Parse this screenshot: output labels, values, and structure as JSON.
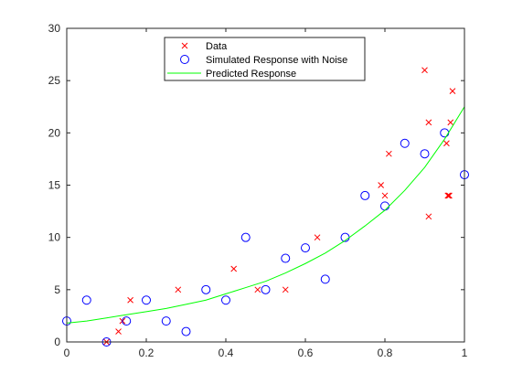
{
  "chart_data": {
    "type": "scatter",
    "title": "",
    "xlabel": "",
    "ylabel": "",
    "xlim": [
      0,
      1
    ],
    "ylim": [
      0,
      30
    ],
    "x_ticks": [
      0,
      0.2,
      0.4,
      0.6,
      0.8,
      1
    ],
    "x_tick_labels": [
      "0",
      "0.2",
      "0.4",
      "0.6",
      "0.8",
      "1"
    ],
    "y_ticks": [
      0,
      5,
      10,
      15,
      20,
      25,
      30
    ],
    "y_tick_labels": [
      "0",
      "5",
      "10",
      "15",
      "20",
      "25",
      "30"
    ],
    "grid": false,
    "legend_position": "top-center",
    "series": [
      {
        "name": "Data",
        "marker": "x",
        "color": "#ff0000",
        "x": [
          0.1,
          0.13,
          0.14,
          0.16,
          0.28,
          0.42,
          0.48,
          0.55,
          0.63,
          0.79,
          0.8,
          0.81,
          0.9,
          0.91,
          0.91,
          0.955,
          0.958,
          0.96,
          0.962,
          0.965,
          0.97
        ],
        "y": [
          0,
          1,
          2,
          4,
          5,
          7,
          5,
          5,
          10,
          15,
          14,
          18,
          26,
          12,
          21,
          19,
          14,
          14,
          14,
          21,
          24
        ]
      },
      {
        "name": "Simulated Response with Noise",
        "marker": "o",
        "color": "#0000ff",
        "x": [
          0.0,
          0.05,
          0.1,
          0.15,
          0.2,
          0.25,
          0.3,
          0.35,
          0.4,
          0.45,
          0.5,
          0.55,
          0.6,
          0.65,
          0.7,
          0.75,
          0.8,
          0.85,
          0.9,
          0.95,
          1.0
        ],
        "y": [
          2,
          4,
          0,
          2,
          4,
          2,
          1,
          5,
          4,
          10,
          5,
          8,
          9,
          6,
          10,
          14,
          13,
          19,
          18,
          20,
          16
        ]
      },
      {
        "name": "Predicted Response",
        "marker": "line",
        "color": "#00ff00",
        "x": [
          0,
          0.05,
          0.1,
          0.15,
          0.2,
          0.25,
          0.3,
          0.35,
          0.4,
          0.45,
          0.5,
          0.55,
          0.6,
          0.65,
          0.7,
          0.75,
          0.8,
          0.85,
          0.9,
          0.95,
          1.0
        ],
        "y": [
          1.8,
          2.0,
          2.3,
          2.6,
          2.9,
          3.2,
          3.6,
          4.0,
          4.6,
          5.2,
          5.8,
          6.6,
          7.5,
          8.5,
          9.7,
          11.1,
          12.6,
          14.5,
          16.7,
          19.4,
          22.5
        ]
      }
    ]
  }
}
